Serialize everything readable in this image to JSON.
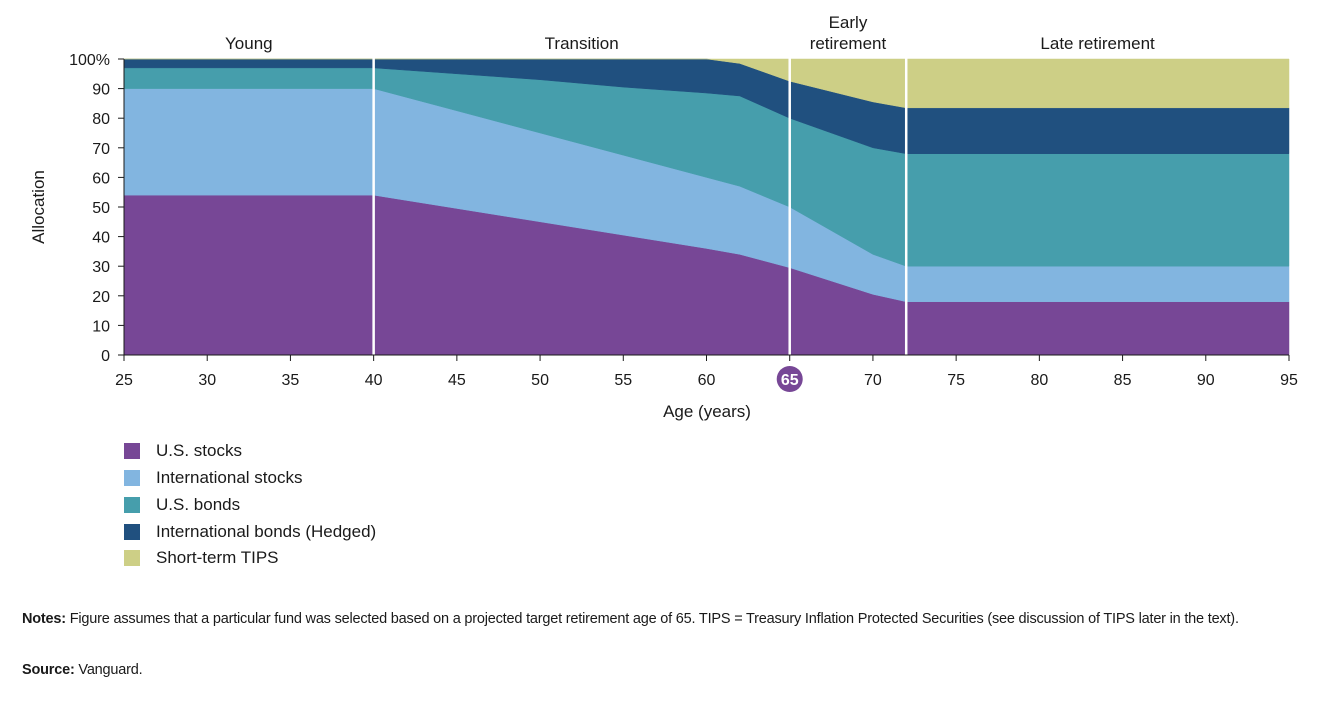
{
  "chart_data": {
    "type": "area",
    "stacked": true,
    "title": "",
    "xlabel": "Age (years)",
    "ylabel": "Allocation",
    "xlim": [
      25,
      95
    ],
    "ylim": [
      0,
      100
    ],
    "x_ticks": [
      25,
      30,
      35,
      40,
      45,
      50,
      55,
      60,
      65,
      70,
      75,
      80,
      85,
      90,
      95
    ],
    "y_ticks": [
      0,
      10,
      20,
      30,
      40,
      50,
      60,
      70,
      80,
      90,
      100
    ],
    "y_tick_labels": [
      "0",
      "10",
      "20",
      "30",
      "40",
      "50",
      "60",
      "70",
      "80",
      "90",
      "100%"
    ],
    "highlighted_tick": 65,
    "grid": false,
    "legend_position": "bottom-left",
    "phases": [
      {
        "label_lines": [
          "Young"
        ],
        "start": 25,
        "end": 40
      },
      {
        "label_lines": [
          "Transition"
        ],
        "start": 40,
        "end": 65
      },
      {
        "label_lines": [
          "Early",
          "retirement"
        ],
        "start": 65,
        "end": 72
      },
      {
        "label_lines": [
          "Late retirement"
        ],
        "start": 72,
        "end": 95
      }
    ],
    "x": [
      25,
      40,
      45,
      50,
      55,
      60,
      62,
      65,
      70,
      72,
      95
    ],
    "series": [
      {
        "name": "U.S. stocks",
        "color": "#774796",
        "values": [
          54,
          54,
          49.5,
          45,
          40.5,
          36,
          34,
          29.5,
          20.5,
          18,
          18
        ]
      },
      {
        "name": "International stocks",
        "color": "#82b5e0",
        "values": [
          36,
          36,
          33,
          30,
          27,
          24,
          23,
          20.5,
          13.5,
          12,
          12
        ]
      },
      {
        "name": "U.S. bonds",
        "color": "#469eac",
        "values": [
          7,
          7,
          12.5,
          18,
          23,
          28.5,
          30.5,
          30,
          36,
          38,
          38
        ]
      },
      {
        "name": "International bonds (Hedged)",
        "color": "#20507f",
        "values": [
          3,
          3,
          5,
          7,
          9.5,
          11.5,
          11,
          12.5,
          15.5,
          15.5,
          15.5
        ]
      },
      {
        "name": "Short-term TIPS",
        "color": "#cdcf86",
        "values": [
          0,
          0,
          0,
          0,
          0,
          0,
          1.5,
          7.5,
          14.5,
          16.5,
          16.5
        ]
      }
    ]
  },
  "notes": {
    "label": "Notes:",
    "text": " Figure assumes that a particular fund was selected based on a projected target retirement age of 65. TIPS = Treasury Inflation Protected Securities (see discussion of TIPS later in the text)."
  },
  "source": {
    "label": "Source:",
    "text": " Vanguard."
  }
}
